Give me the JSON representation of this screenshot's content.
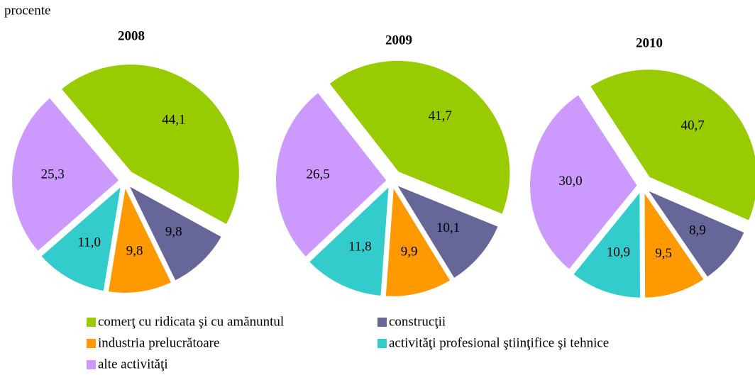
{
  "unit_label": "procente",
  "chart_data": [
    {
      "type": "pie",
      "title": "2008",
      "categories": [
        "comerţ cu ridicata şi cu amănuntul",
        "construcţii",
        "industria prelucrătoare",
        "activităţi profesional ştiinţifice şi tehnice",
        "alte activităţi"
      ],
      "colors": [
        "#99cc00",
        "#666699",
        "#ff9900",
        "#33cccc",
        "#cc99ff"
      ],
      "values": [
        44.1,
        9.8,
        9.8,
        11.0,
        25.3
      ],
      "value_labels": [
        "44,1",
        "9,8",
        "9,8",
        "11,0",
        "25,3"
      ]
    },
    {
      "type": "pie",
      "title": "2009",
      "categories": [
        "comerţ cu ridicata şi cu amănuntul",
        "construcţii",
        "industria prelucrătoare",
        "activităţi profesional ştiinţifice şi tehnice",
        "alte activităţi"
      ],
      "colors": [
        "#99cc00",
        "#666699",
        "#ff9900",
        "#33cccc",
        "#cc99ff"
      ],
      "values": [
        41.7,
        10.1,
        9.9,
        11.8,
        26.5
      ],
      "value_labels": [
        "41,7",
        "10,1",
        "9,9",
        "11,8",
        "26,5"
      ]
    },
    {
      "type": "pie",
      "title": "2010",
      "categories": [
        "comerţ cu ridicata şi cu amănuntul",
        "construcţii",
        "industria prelucrătoare",
        "activităţi profesional ştiinţifice şi tehnice",
        "alte activităţi"
      ],
      "colors": [
        "#99cc00",
        "#666699",
        "#ff9900",
        "#33cccc",
        "#cc99ff"
      ],
      "values": [
        40.7,
        8.9,
        9.5,
        10.9,
        30.0
      ],
      "value_labels": [
        "40,7",
        "8,9",
        "9,5",
        "10,9",
        "30,0"
      ]
    }
  ]
}
